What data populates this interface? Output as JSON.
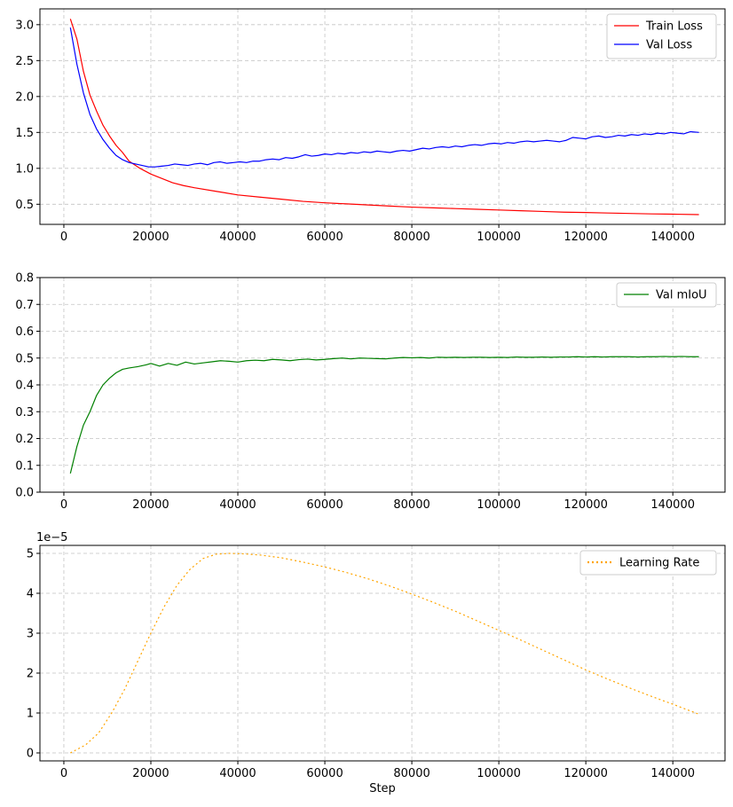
{
  "chart_data": [
    {
      "type": "line",
      "title": "",
      "xlabel": "",
      "ylabel": "",
      "xlim": [
        -5500,
        152000
      ],
      "ylim": [
        0.22,
        3.22
      ],
      "xticks": [
        0,
        20000,
        40000,
        60000,
        80000,
        100000,
        120000,
        140000
      ],
      "xtick_labels": [
        "0",
        "20000",
        "40000",
        "60000",
        "80000",
        "100000",
        "120000",
        "140000"
      ],
      "yticks": [
        0.5,
        1.0,
        1.5,
        2.0,
        2.5,
        3.0
      ],
      "ytick_labels": [
        "0.5",
        "1.0",
        "1.5",
        "2.0",
        "2.5",
        "3.0"
      ],
      "grid": true,
      "legend_position": "top-right",
      "series": [
        {
          "name": "Train Loss",
          "color": "#ff0000",
          "style": "solid",
          "x": [
            1500,
            3000,
            4500,
            6000,
            7500,
            9000,
            10500,
            12000,
            13500,
            15000,
            17500,
            20000,
            22500,
            25000,
            27500,
            30000,
            35000,
            40000,
            45000,
            50000,
            55000,
            60000,
            65000,
            70000,
            75000,
            80000,
            85000,
            90000,
            95000,
            100000,
            105000,
            110000,
            115000,
            120000,
            125000,
            130000,
            135000,
            140000,
            146000
          ],
          "values": [
            3.08,
            2.8,
            2.35,
            2.02,
            1.8,
            1.6,
            1.45,
            1.32,
            1.22,
            1.1,
            1.0,
            0.92,
            0.86,
            0.8,
            0.76,
            0.73,
            0.68,
            0.63,
            0.6,
            0.57,
            0.54,
            0.52,
            0.505,
            0.49,
            0.475,
            0.46,
            0.45,
            0.44,
            0.43,
            0.42,
            0.41,
            0.4,
            0.39,
            0.385,
            0.378,
            0.372,
            0.366,
            0.362,
            0.356
          ]
        },
        {
          "name": "Val Loss",
          "color": "#0000ff",
          "style": "solid",
          "x": [
            1500,
            3000,
            4500,
            6000,
            7500,
            9000,
            10500,
            12000,
            13500,
            15000,
            16500,
            18000,
            19500,
            21000,
            22500,
            24000,
            25500,
            27000,
            28500,
            30000,
            31500,
            33000,
            34500,
            36000,
            37500,
            39000,
            40500,
            42000,
            43500,
            45000,
            46500,
            48000,
            49500,
            51000,
            52500,
            54000,
            55500,
            57000,
            58500,
            60000,
            61500,
            63000,
            64500,
            66000,
            67500,
            69000,
            70500,
            72000,
            73500,
            75000,
            76500,
            78000,
            79500,
            81000,
            82500,
            84000,
            85500,
            87000,
            88500,
            90000,
            91500,
            93000,
            94500,
            96000,
            97500,
            99000,
            100500,
            102000,
            103500,
            105000,
            106500,
            108000,
            109500,
            111000,
            112500,
            114000,
            115500,
            117000,
            118500,
            120000,
            121500,
            123000,
            124500,
            126000,
            127500,
            129000,
            130500,
            132000,
            133500,
            135000,
            136500,
            138000,
            139500,
            141000,
            142500,
            144000,
            146000
          ],
          "values": [
            2.96,
            2.45,
            2.05,
            1.75,
            1.55,
            1.4,
            1.28,
            1.18,
            1.12,
            1.08,
            1.06,
            1.04,
            1.02,
            1.02,
            1.03,
            1.04,
            1.06,
            1.05,
            1.04,
            1.06,
            1.07,
            1.05,
            1.08,
            1.09,
            1.07,
            1.08,
            1.09,
            1.08,
            1.1,
            1.1,
            1.12,
            1.13,
            1.12,
            1.15,
            1.14,
            1.16,
            1.19,
            1.17,
            1.18,
            1.2,
            1.19,
            1.21,
            1.2,
            1.22,
            1.21,
            1.23,
            1.22,
            1.24,
            1.23,
            1.22,
            1.24,
            1.25,
            1.24,
            1.26,
            1.28,
            1.27,
            1.29,
            1.3,
            1.29,
            1.31,
            1.3,
            1.32,
            1.33,
            1.32,
            1.34,
            1.35,
            1.34,
            1.36,
            1.35,
            1.37,
            1.38,
            1.37,
            1.38,
            1.39,
            1.38,
            1.37,
            1.39,
            1.43,
            1.42,
            1.41,
            1.44,
            1.45,
            1.43,
            1.44,
            1.46,
            1.45,
            1.47,
            1.46,
            1.48,
            1.47,
            1.49,
            1.48,
            1.5,
            1.49,
            1.48,
            1.51,
            1.5
          ]
        }
      ]
    },
    {
      "type": "line",
      "title": "",
      "xlabel": "",
      "ylabel": "",
      "xlim": [
        -5500,
        152000
      ],
      "ylim": [
        0.0,
        0.8
      ],
      "xticks": [
        0,
        20000,
        40000,
        60000,
        80000,
        100000,
        120000,
        140000
      ],
      "xtick_labels": [
        "0",
        "20000",
        "40000",
        "60000",
        "80000",
        "100000",
        "120000",
        "140000"
      ],
      "yticks": [
        0.0,
        0.1,
        0.2,
        0.3,
        0.4,
        0.5,
        0.6,
        0.7,
        0.8
      ],
      "ytick_labels": [
        "0.0",
        "0.1",
        "0.2",
        "0.3",
        "0.4",
        "0.5",
        "0.6",
        "0.7",
        "0.8"
      ],
      "grid": true,
      "legend_position": "top-right",
      "series": [
        {
          "name": "Val mIoU",
          "color": "#008000",
          "style": "solid",
          "x": [
            1500,
            3000,
            4500,
            6000,
            7500,
            9000,
            10500,
            12000,
            13500,
            15000,
            17000,
            19000,
            20000,
            22000,
            24000,
            26000,
            28000,
            30000,
            32000,
            34000,
            36000,
            38000,
            40000,
            42000,
            44000,
            46000,
            48000,
            50000,
            52000,
            54000,
            56000,
            58000,
            60000,
            62000,
            64000,
            66000,
            68000,
            70000,
            72000,
            74000,
            76000,
            78000,
            80000,
            82000,
            84000,
            86000,
            88000,
            90000,
            92000,
            94000,
            96000,
            98000,
            100000,
            102000,
            104000,
            106000,
            108000,
            110000,
            112000,
            114000,
            116000,
            118000,
            120000,
            122000,
            124000,
            126000,
            128000,
            130000,
            132000,
            134000,
            136000,
            138000,
            140000,
            142000,
            144000,
            146000
          ],
          "values": [
            0.07,
            0.17,
            0.25,
            0.3,
            0.36,
            0.4,
            0.425,
            0.445,
            0.458,
            0.463,
            0.468,
            0.475,
            0.48,
            0.47,
            0.48,
            0.473,
            0.485,
            0.478,
            0.482,
            0.486,
            0.49,
            0.488,
            0.485,
            0.49,
            0.492,
            0.49,
            0.495,
            0.493,
            0.49,
            0.494,
            0.496,
            0.493,
            0.495,
            0.498,
            0.5,
            0.497,
            0.5,
            0.499,
            0.498,
            0.497,
            0.5,
            0.502,
            0.501,
            0.502,
            0.5,
            0.503,
            0.502,
            0.503,
            0.502,
            0.503,
            0.503,
            0.502,
            0.503,
            0.502,
            0.504,
            0.503,
            0.503,
            0.504,
            0.503,
            0.504,
            0.504,
            0.505,
            0.504,
            0.505,
            0.504,
            0.505,
            0.505,
            0.505,
            0.504,
            0.505,
            0.505,
            0.506,
            0.505,
            0.506,
            0.505,
            0.505
          ]
        }
      ]
    },
    {
      "type": "line",
      "title": "",
      "xlabel": "Step",
      "ylabel": "",
      "offset_text": "1e−5",
      "xlim": [
        -5500,
        152000
      ],
      "ylim": [
        -0.2,
        5.2
      ],
      "xticks": [
        0,
        20000,
        40000,
        60000,
        80000,
        100000,
        120000,
        140000
      ],
      "xtick_labels": [
        "0",
        "20000",
        "40000",
        "60000",
        "80000",
        "100000",
        "120000",
        "140000"
      ],
      "yticks": [
        0,
        1,
        2,
        3,
        4,
        5
      ],
      "ytick_labels": [
        "0",
        "1",
        "2",
        "3",
        "4",
        "5"
      ],
      "grid": true,
      "legend_position": "top-right",
      "series": [
        {
          "name": "Learning Rate",
          "color": "#ffa500",
          "style": "dotted",
          "x": [
            1500,
            5000,
            8000,
            11000,
            14000,
            17000,
            20000,
            23000,
            26000,
            29000,
            32000,
            35000,
            38000,
            41000,
            45000,
            50000,
            55000,
            60000,
            65000,
            70000,
            75000,
            80000,
            85000,
            90000,
            95000,
            100000,
            105000,
            110000,
            115000,
            120000,
            125000,
            130000,
            135000,
            140000,
            146000
          ],
          "values": [
            0.0,
            0.2,
            0.5,
            1.0,
            1.6,
            2.3,
            3.0,
            3.65,
            4.2,
            4.6,
            4.87,
            4.98,
            5.0,
            4.99,
            4.96,
            4.89,
            4.78,
            4.66,
            4.52,
            4.36,
            4.18,
            3.98,
            3.77,
            3.55,
            3.31,
            3.07,
            2.83,
            2.58,
            2.33,
            2.08,
            1.85,
            1.63,
            1.42,
            1.22,
            0.97
          ]
        }
      ]
    }
  ]
}
